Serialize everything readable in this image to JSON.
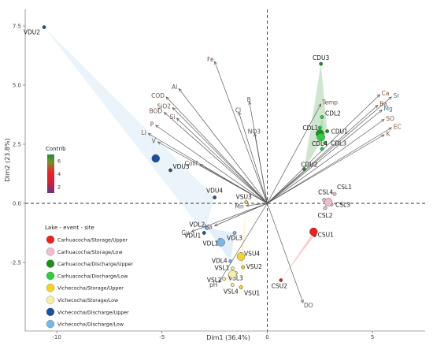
{
  "chart_data": {
    "type": "scatter",
    "subtype": "pca-biplot",
    "title": "",
    "xlabel": "Dim1 (36.4%)",
    "ylabel": "Dim2 (23.8%)",
    "xlim": [
      -11.5,
      7.5
    ],
    "ylim": [
      -5.4,
      8.2
    ],
    "x_ticks": [
      -10,
      -5,
      0,
      5
    ],
    "y_ticks": [
      -2.5,
      0.0,
      2.5,
      5.0,
      7.5
    ],
    "y_tick_labels": [
      "-2.5",
      "0.0",
      "2.5",
      "5.0",
      "7.5"
    ],
    "grid": false,
    "reference_lines": {
      "x": 0,
      "y": 0,
      "style": "dashed"
    },
    "points": [
      {
        "label": "VDU2",
        "x": -10.6,
        "y": 7.45,
        "group": "Vichecocha/Discharge/Upper"
      },
      {
        "label": "VDU3",
        "x": -4.6,
        "y": 1.4,
        "group": "Vichecocha/Discharge/Upper"
      },
      {
        "label": "VDU4",
        "x": -2.5,
        "y": 0.25,
        "group": "Vichecocha/Discharge/Upper"
      },
      {
        "label": "VDU1",
        "x": -3.0,
        "y": -1.25,
        "group": "Vichecocha/Discharge/Upper"
      },
      {
        "label": "VDL2",
        "x": -2.85,
        "y": -1.05,
        "group": "Vichecocha/Discharge/Low"
      },
      {
        "label": "VDL1",
        "x": -2.25,
        "y": -1.55,
        "group": "Vichecocha/Discharge/Low"
      },
      {
        "label": "VDL3",
        "x": -1.55,
        "y": -1.25,
        "group": "Vichecocha/Discharge/Low"
      },
      {
        "label": "VSU3",
        "x": -1.0,
        "y": 0.05,
        "group": "Vichecocha/Storage/Upper"
      },
      {
        "label": "VSU4",
        "x": -1.25,
        "y": -2.15,
        "group": "Vichecocha/Storage/Upper"
      },
      {
        "label": "VSU2",
        "x": -1.15,
        "y": -2.7,
        "group": "Vichecocha/Storage/Upper"
      },
      {
        "label": "VSU1",
        "x": -1.25,
        "y": -3.55,
        "group": "Vichecocha/Storage/Upper"
      },
      {
        "label": "VDL4",
        "x": -1.75,
        "y": -2.45,
        "group": "Vichecocha/Discharge/Low"
      },
      {
        "label": "VSL1",
        "x": -1.65,
        "y": -2.75,
        "group": "Vichecocha/Storage/Low"
      },
      {
        "label": "VSL3",
        "x": -1.5,
        "y": -2.95,
        "group": "Vichecocha/Storage/Low"
      },
      {
        "label": "VSL2",
        "x": -2.05,
        "y": -3.2,
        "group": "Vichecocha/Storage/Low"
      },
      {
        "label": "VSL4",
        "x": -1.65,
        "y": -3.45,
        "group": "Vichecocha/Storage/Low"
      },
      {
        "label": "CDU3",
        "x": 2.55,
        "y": 5.9,
        "group": "Carhuacocha/Discharge/Upper"
      },
      {
        "label": "CDL2",
        "x": 2.6,
        "y": 3.65,
        "group": "Carhuacocha/Discharge/Low"
      },
      {
        "label": "CDL1",
        "x": 2.5,
        "y": 3.2,
        "group": "Carhuacocha/Discharge/Low"
      },
      {
        "label": "CDU1",
        "x": 2.85,
        "y": 3.05,
        "group": "Carhuacocha/Discharge/Upper"
      },
      {
        "label": "CDL3",
        "x": 2.75,
        "y": 2.55,
        "group": "Carhuacocha/Discharge/Low"
      },
      {
        "label": "CDL4",
        "x": 2.6,
        "y": 2.3,
        "group": "Carhuacocha/Discharge/Low"
      },
      {
        "label": "CDU2",
        "x": 1.75,
        "y": 1.45,
        "group": "Carhuacocha/Discharge/Upper"
      },
      {
        "label": "CSL4",
        "x": 2.7,
        "y": 0.15,
        "group": "Carhuacocha/Storage/Low"
      },
      {
        "label": "CSL1",
        "x": 3.2,
        "y": 0.4,
        "group": "Carhuacocha/Storage/Low"
      },
      {
        "label": "CSL3",
        "x": 3.05,
        "y": -0.05,
        "group": "Carhuacocha/Storage/Low"
      },
      {
        "label": "CSL2",
        "x": 2.75,
        "y": -0.2,
        "group": "Carhuacocha/Storage/Low"
      },
      {
        "label": "CSU1",
        "x": 2.25,
        "y": -1.35,
        "group": "Carhuacocha/Storage/Upper"
      },
      {
        "label": "CSU2",
        "x": 0.65,
        "y": -3.25,
        "group": "Carhuacocha/Storage/Upper"
      }
    ],
    "group_means": [
      {
        "group": "Vichecocha/Discharge/Upper",
        "x": -5.3,
        "y": 1.9
      },
      {
        "group": "Carhuacocha/Discharge/Upper",
        "x": 2.5,
        "y": 2.95
      },
      {
        "group": "Carhuacocha/Discharge/Low",
        "x": 2.55,
        "y": 2.8
      },
      {
        "group": "Carhuacocha/Storage/Upper",
        "x": 2.2,
        "y": -1.2
      },
      {
        "group": "Carhuacocha/Storage/Low",
        "x": 2.9,
        "y": 0.05
      },
      {
        "group": "Vichecocha/Storage/Upper",
        "x": -1.25,
        "y": -2.25
      },
      {
        "group": "Vichecocha/Storage/Low",
        "x": -1.65,
        "y": -3.0
      },
      {
        "group": "Vichecocha/Discharge/Low",
        "x": -2.2,
        "y": -1.65
      }
    ],
    "variables": [
      {
        "label": "Fe",
        "x": -2.5,
        "y": 6.0,
        "contrib": 4.3
      },
      {
        "label": "B",
        "x": -0.85,
        "y": 4.3,
        "contrib": 4.0
      },
      {
        "label": "Cl",
        "x": -1.35,
        "y": 3.85,
        "contrib": 3.8
      },
      {
        "label": "Al",
        "x": -4.2,
        "y": 4.85,
        "contrib": 3.9
      },
      {
        "label": "COD",
        "x": -4.8,
        "y": 4.5,
        "contrib": 3.7
      },
      {
        "label": "SiO2",
        "x": -4.5,
        "y": 4.05,
        "contrib": 3.5
      },
      {
        "label": "BOD",
        "x": -4.9,
        "y": 3.85,
        "contrib": 3.4
      },
      {
        "label": "Si",
        "x": -4.3,
        "y": 3.6,
        "contrib": 3.3
      },
      {
        "label": "P",
        "x": -5.3,
        "y": 3.3,
        "contrib": 3.2
      },
      {
        "label": "Li",
        "x": -5.65,
        "y": 2.95,
        "contrib": 3.5
      },
      {
        "label": "V",
        "x": -5.2,
        "y": 2.6,
        "contrib": 3.0
      },
      {
        "label": "Colif",
        "x": -3.2,
        "y": 1.65,
        "contrib": 2.5
      },
      {
        "label": "NO3",
        "x": -0.6,
        "y": 2.95,
        "contrib": 2.0
      },
      {
        "label": "Temp",
        "x": 2.55,
        "y": 4.2,
        "contrib": 3.6
      },
      {
        "label": "Ca",
        "x": 5.35,
        "y": 4.6,
        "contrib": 6.2
      },
      {
        "label": "Sr",
        "x": 5.9,
        "y": 4.5,
        "contrib": 6.0
      },
      {
        "label": "Ba",
        "x": 5.25,
        "y": 4.15,
        "contrib": 5.4
      },
      {
        "label": "Mg",
        "x": 5.45,
        "y": 3.95,
        "contrib": 5.8
      },
      {
        "label": "SO",
        "x": 5.55,
        "y": 3.55,
        "contrib": 5.5
      },
      {
        "label": "EC",
        "x": 5.9,
        "y": 3.2,
        "contrib": 5.6
      },
      {
        "label": "K",
        "x": 5.55,
        "y": 2.9,
        "contrib": 5.0
      },
      {
        "label": "Mn",
        "x": -1.0,
        "y": -0.1,
        "contrib": 1.8
      },
      {
        "label": "Na",
        "x": -2.5,
        "y": -0.95,
        "contrib": 1.6
      },
      {
        "label": "Cu",
        "x": -3.6,
        "y": -1.2,
        "contrib": 1.7
      },
      {
        "label": "pH",
        "x": -2.3,
        "y": -3.35,
        "contrib": 1.9
      },
      {
        "label": "DO",
        "x": 1.7,
        "y": -4.2,
        "contrib": 2.4
      }
    ],
    "contrib_legend": {
      "title": "Contrib",
      "ticks": [
        2,
        4,
        6
      ],
      "range": [
        1,
        7
      ]
    },
    "group_legend": {
      "title": "Lake - event - site",
      "items": [
        {
          "label": "Carhuacocha/Storage/Upper",
          "color": "#e5231f"
        },
        {
          "label": "Carhuacocha/Storage/Low",
          "color": "#f0bcd2"
        },
        {
          "label": "Carhuacocha/Discharge/Upper",
          "color": "#1e8e1e"
        },
        {
          "label": "Carhuacocha/Discharge/Low",
          "color": "#2ecc40"
        },
        {
          "label": "Vichecocha/Storage/Upper",
          "color": "#f5d327"
        },
        {
          "label": "Vichecocha/Storage/Low",
          "color": "#f7eeaa"
        },
        {
          "label": "Vichecocha/Discharge/Upper",
          "color": "#1c4f9c"
        },
        {
          "label": "Vichecocha/Discharge/Low",
          "color": "#79b7e6"
        }
      ]
    }
  }
}
